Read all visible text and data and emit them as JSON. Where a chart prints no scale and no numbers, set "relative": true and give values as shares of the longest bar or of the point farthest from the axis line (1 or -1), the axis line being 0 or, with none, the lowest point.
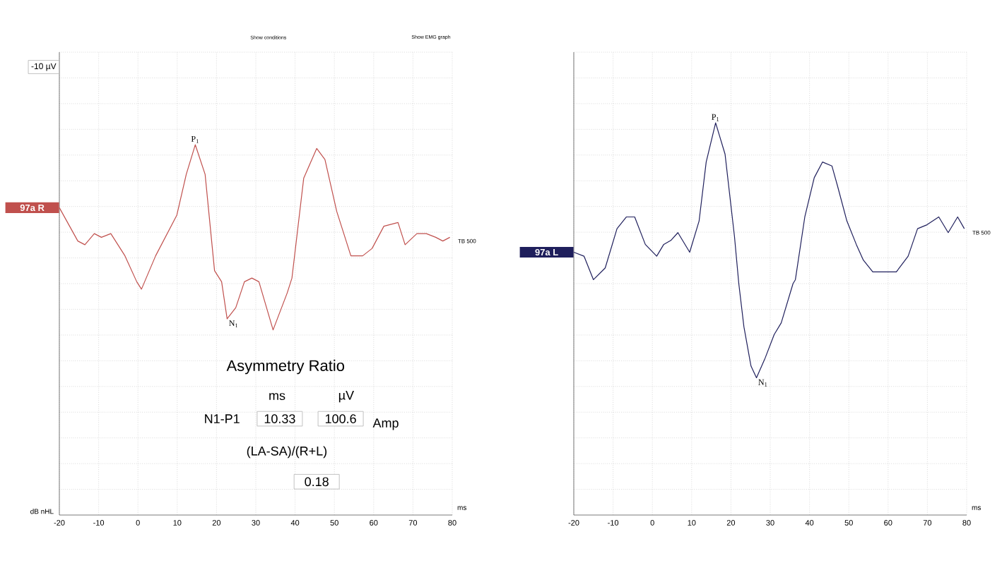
{
  "chart_data": [
    {
      "type": "line",
      "relative": true,
      "xlabel": "ms",
      "xlim": [
        -20,
        80
      ],
      "xticks": [
        -20,
        -10,
        0,
        10,
        20,
        30,
        40,
        50,
        60,
        70,
        80
      ],
      "grid": true,
      "x": [
        -20,
        -15.3,
        -13.5,
        -11.1,
        -9.3,
        -6.9,
        -3.3,
        -0.3,
        0.9,
        4.5,
        9.9,
        12.3,
        14.6,
        17.1,
        19.5,
        21.3,
        22.7,
        24.9,
        27.1,
        29.0,
        30.8,
        34.4,
        38.0,
        39.2,
        42.2,
        45.5,
        47.6,
        50.6,
        54.2,
        57.2,
        59.6,
        62.6,
        66.2,
        68.0,
        71.0,
        73.4,
        75.8,
        77.6,
        79.4
      ],
      "series": [
        {
          "name": "97a R",
          "color": "#c0504d",
          "values": [
            0.83,
            0.74,
            0.73,
            0.76,
            0.75,
            0.76,
            0.7,
            0.63,
            0.61,
            0.7,
            0.81,
            0.92,
            1.0,
            0.92,
            0.66,
            0.63,
            0.53,
            0.56,
            0.63,
            0.64,
            0.63,
            0.5,
            0.6,
            0.64,
            0.91,
            0.99,
            0.96,
            0.82,
            0.7,
            0.7,
            0.72,
            0.78,
            0.79,
            0.73,
            0.76,
            0.76,
            0.75,
            0.74,
            0.75
          ]
        }
      ],
      "annotations": [
        {
          "text": "P$_{1}$",
          "x": 14.6,
          "y": 1.0
        },
        {
          "text": "N$_{1}$",
          "x": 22.7,
          "y": 0.53
        },
        "Show conditions",
        "Show EMG graph",
        "-10 µV",
        "TB 500",
        "dB nHL",
        "Asymmetry Ratio",
        "ms",
        "µV",
        "N1-P1",
        "10.33",
        "100.6",
        "Amp",
        "(LA-SA)/(R+L)",
        "0.18"
      ]
    },
    {
      "type": "line",
      "relative": true,
      "xlabel": "ms",
      "xlim": [
        -20,
        80
      ],
      "xticks": [
        -20,
        -10,
        0,
        10,
        20,
        30,
        40,
        50,
        60,
        70,
        80
      ],
      "grid": true,
      "x": [
        -20,
        -17.4,
        -15.0,
        -12.0,
        -9.0,
        -6.6,
        -4.5,
        -1.8,
        1.1,
        2.9,
        4.7,
        6.5,
        9.5,
        11.9,
        13.7,
        16.1,
        18.5,
        20.9,
        22.0,
        23.3,
        25.1,
        26.5,
        28.7,
        31.0,
        32.8,
        35.8,
        36.4,
        38.8,
        41.2,
        43.3,
        45.7,
        47.1,
        49.5,
        51.9,
        53.7,
        56.1,
        59.1,
        62.1,
        65.1,
        67.5,
        69.9,
        72.9,
        75.3,
        77.7,
        79.4
      ],
      "series": [
        {
          "name": "97a L",
          "color": "#1f1f5c",
          "values": [
            0.67,
            0.66,
            0.6,
            0.63,
            0.73,
            0.76,
            0.76,
            0.69,
            0.66,
            0.69,
            0.7,
            0.72,
            0.67,
            0.75,
            0.9,
            1.0,
            0.92,
            0.71,
            0.59,
            0.48,
            0.38,
            0.35,
            0.4,
            0.46,
            0.49,
            0.59,
            0.6,
            0.76,
            0.86,
            0.9,
            0.89,
            0.84,
            0.75,
            0.69,
            0.65,
            0.62,
            0.62,
            0.62,
            0.66,
            0.73,
            0.74,
            0.76,
            0.72,
            0.76,
            0.73
          ]
        }
      ],
      "annotations": [
        {
          "text": "P$_{1}$",
          "x": 16.1,
          "y": 1.0
        },
        {
          "text": "N$_{1}$",
          "x": 26.5,
          "y": 0.35
        },
        "TB 500"
      ]
    }
  ]
}
